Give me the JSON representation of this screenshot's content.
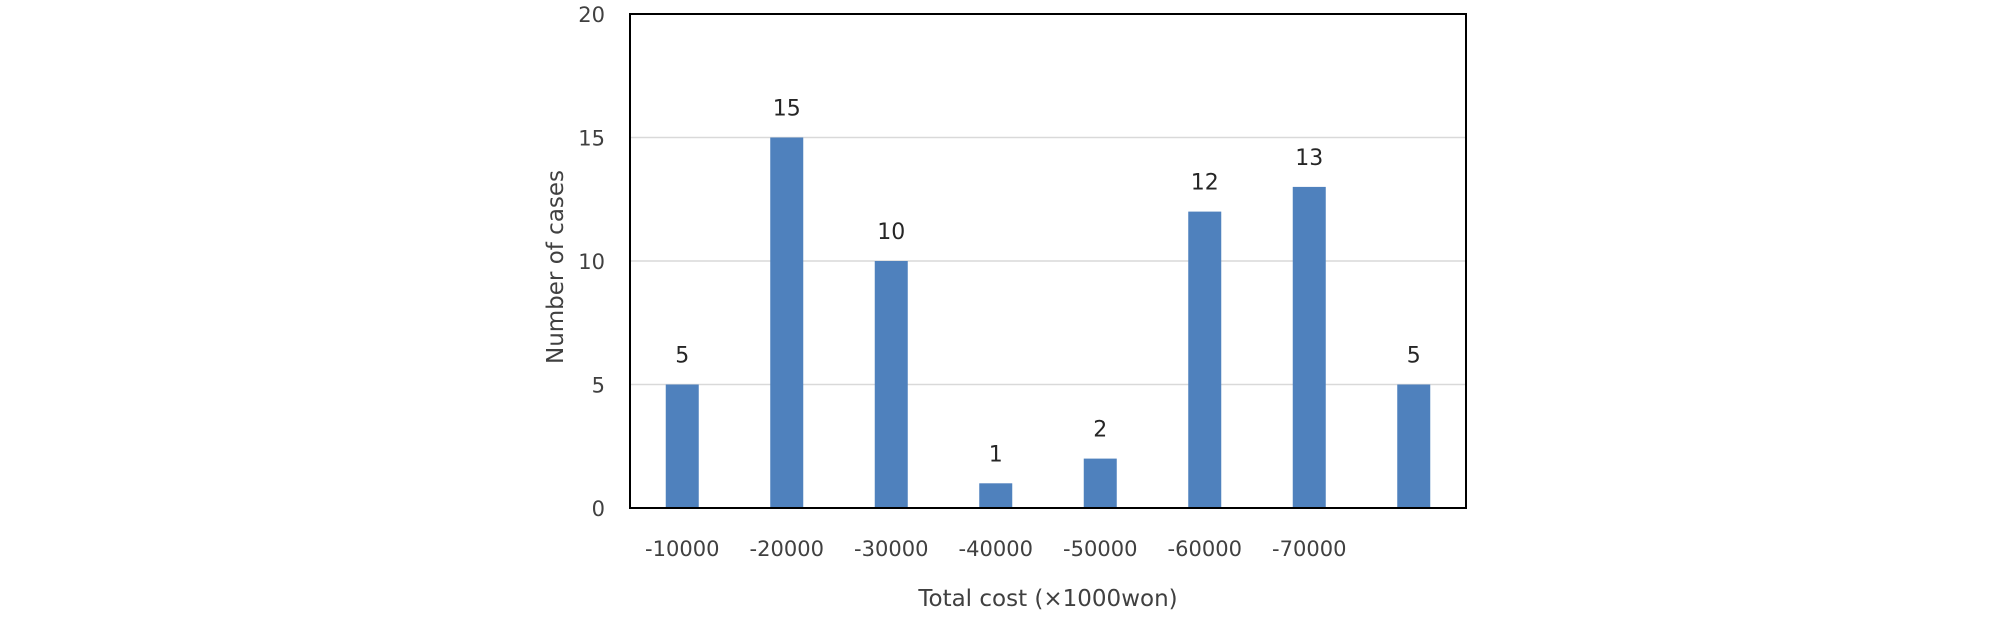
{
  "chart_data": {
    "type": "bar",
    "title": "",
    "xlabel": "Total cost (×1000won)",
    "ylabel": "Number  of cases",
    "categories": [
      "-10000",
      "-20000",
      "-30000",
      "-40000",
      "-50000",
      "-60000",
      "-70000",
      ""
    ],
    "values": [
      5,
      15,
      10,
      1,
      2,
      12,
      13,
      5
    ],
    "data_labels": [
      "5",
      "15",
      "10",
      "1",
      "2",
      "12",
      "13",
      "5"
    ],
    "ylim": [
      0,
      20
    ],
    "yticks": [
      "0",
      "5",
      "10",
      "15",
      "20"
    ],
    "grid": "horizontal",
    "legend": "none",
    "colors": {
      "bar": "#4f81bd",
      "grid": "#d9d9d9",
      "frame": "#000000"
    }
  }
}
